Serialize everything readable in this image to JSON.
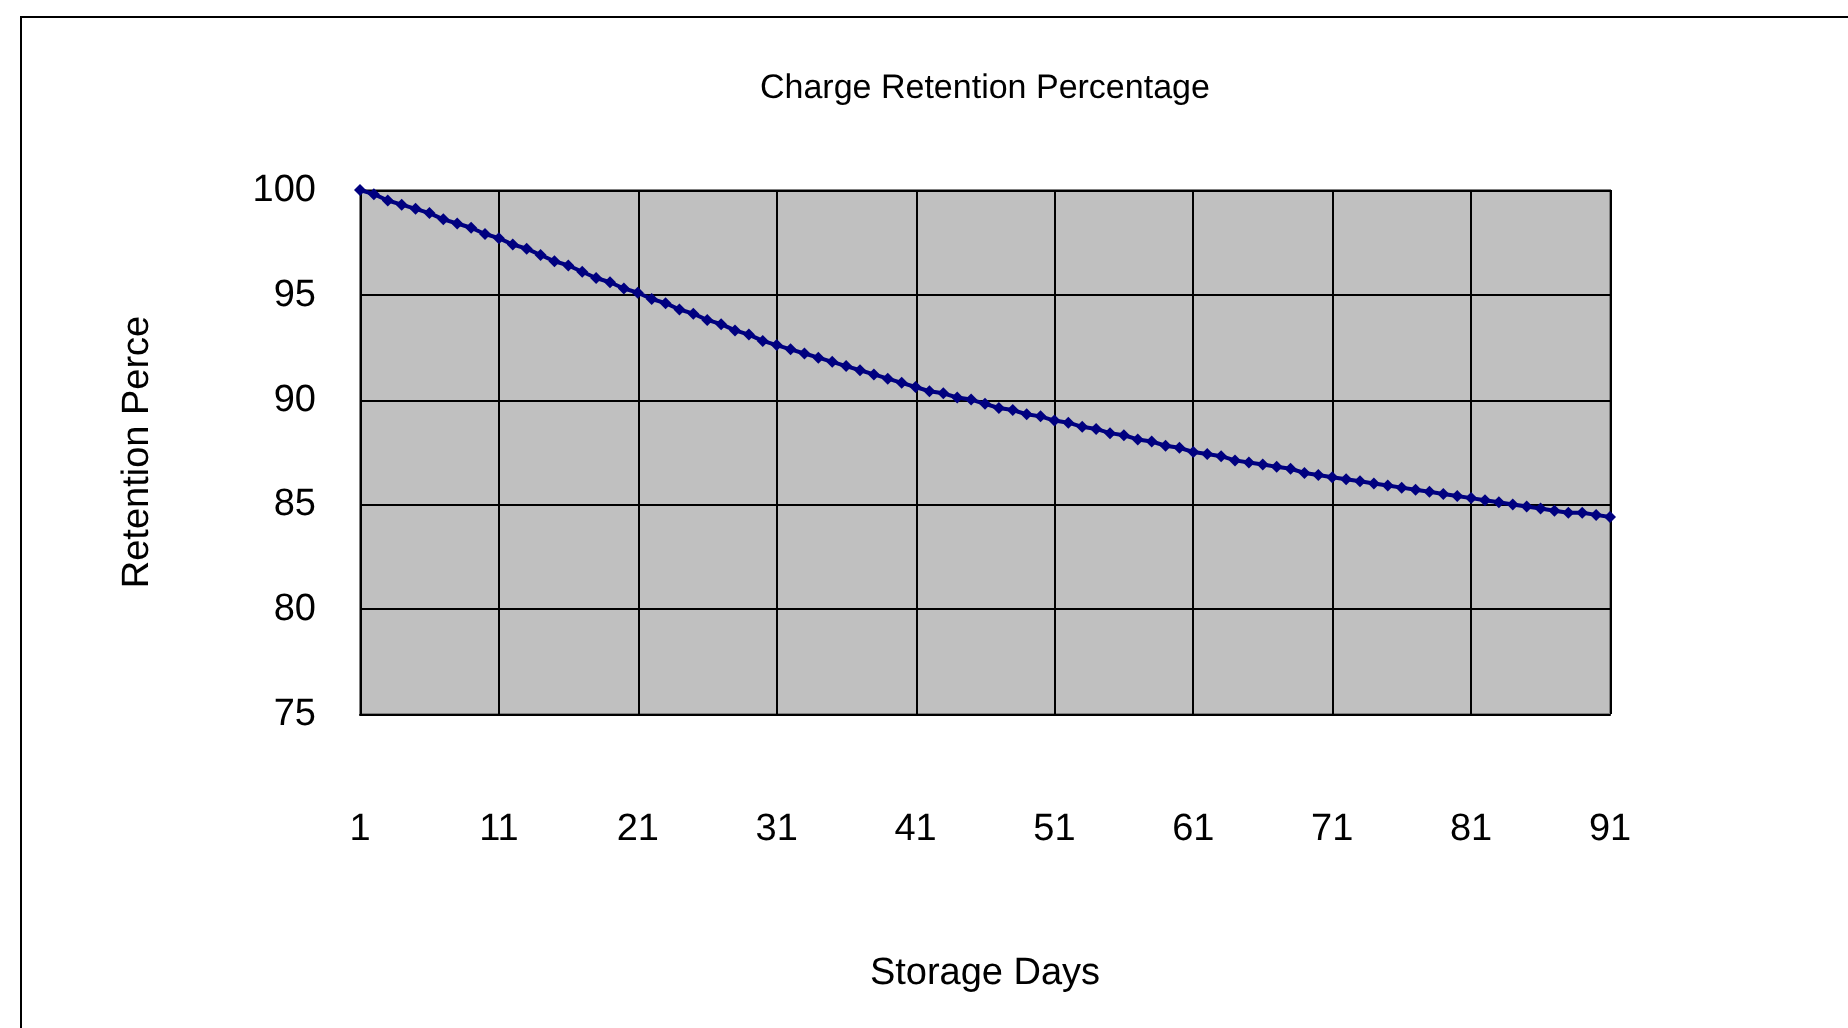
{
  "chart_data": {
    "type": "line",
    "title": "Charge Retention Percentage",
    "xlabel": "Storage Days",
    "ylabel": "Retention Perce",
    "x": [
      1,
      2,
      3,
      4,
      5,
      6,
      7,
      8,
      9,
      10,
      11,
      12,
      13,
      14,
      15,
      16,
      17,
      18,
      19,
      20,
      21,
      22,
      23,
      24,
      25,
      26,
      27,
      28,
      29,
      30,
      31,
      32,
      33,
      34,
      35,
      36,
      37,
      38,
      39,
      40,
      41,
      42,
      43,
      44,
      45,
      46,
      47,
      48,
      49,
      50,
      51,
      52,
      53,
      54,
      55,
      56,
      57,
      58,
      59,
      60,
      61,
      62,
      63,
      64,
      65,
      66,
      67,
      68,
      69,
      70,
      71,
      72,
      73,
      74,
      75,
      76,
      77,
      78,
      79,
      80,
      81,
      82,
      83,
      84,
      85,
      86,
      87,
      88,
      89,
      90,
      91
    ],
    "series": [
      {
        "color": "#000080",
        "values": [
          100,
          99.8,
          99.5,
          99.3,
          99.1,
          98.9,
          98.6,
          98.4,
          98.2,
          97.9,
          97.7,
          97.4,
          97.2,
          96.9,
          96.6,
          96.4,
          96.1,
          95.8,
          95.6,
          95.3,
          95.1,
          94.8,
          94.6,
          94.3,
          94.1,
          93.8,
          93.6,
          93.3,
          93.1,
          92.8,
          92.6,
          92.4,
          92.2,
          92.0,
          91.8,
          91.6,
          91.4,
          91.2,
          91.0,
          90.8,
          90.6,
          90.4,
          90.3,
          90.1,
          90.0,
          89.8,
          89.6,
          89.5,
          89.3,
          89.2,
          89.0,
          88.9,
          88.7,
          88.6,
          88.4,
          88.3,
          88.1,
          88.0,
          87.8,
          87.7,
          87.5,
          87.4,
          87.3,
          87.1,
          87.0,
          86.9,
          86.8,
          86.7,
          86.5,
          86.4,
          86.3,
          86.2,
          86.1,
          86.0,
          85.9,
          85.8,
          85.7,
          85.6,
          85.5,
          85.4,
          85.3,
          85.2,
          85.1,
          85.0,
          84.9,
          84.8,
          84.7,
          84.6,
          84.6,
          84.5,
          84.4
        ]
      }
    ],
    "xlim": [
      1,
      91
    ],
    "xticks": [
      1,
      11,
      21,
      31,
      41,
      51,
      61,
      71,
      81,
      91
    ],
    "ylim": [
      75,
      100
    ],
    "yticks": [
      75,
      80,
      85,
      90,
      95,
      100
    ],
    "grid": true,
    "marker": "diamond",
    "line_style": "solid"
  }
}
